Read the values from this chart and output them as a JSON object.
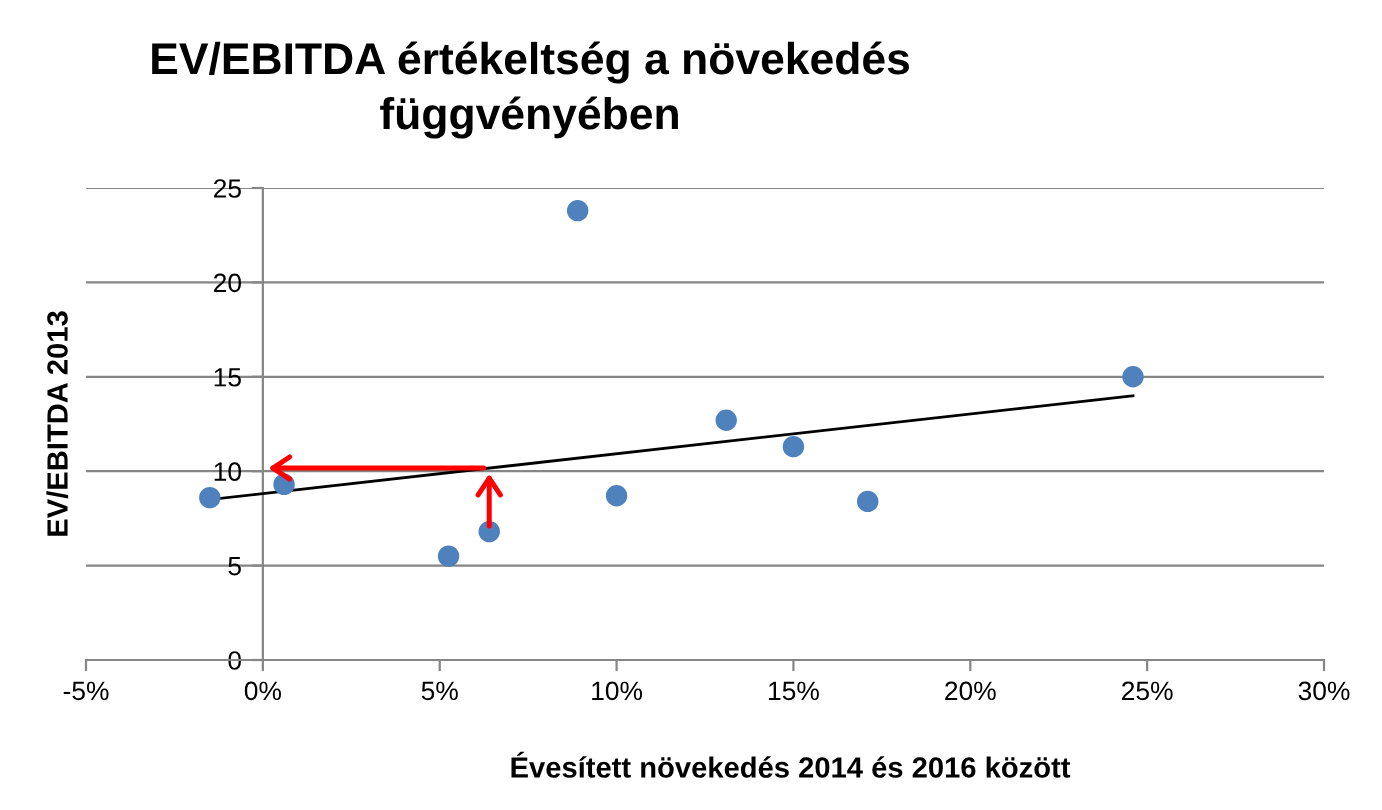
{
  "chart_data": {
    "type": "scatter",
    "title": "EV/EBITDA értékeltség a növekedés\nfüggvényében",
    "xlabel": "Évesített növekedés 2014 és 2016 között",
    "ylabel": "EV/EBITDA 2013",
    "series": [
      {
        "color": "#4f81bd",
        "marker": "circle",
        "x": [
          -1.5,
          0.6,
          5.25,
          6.4,
          8.9,
          10.0,
          13.1,
          15.0,
          17.1,
          24.6
        ],
        "values": [
          8.6,
          9.3,
          5.5,
          6.8,
          23.8,
          8.7,
          12.7,
          11.3,
          8.4,
          15.0
        ]
      },
      {
        "type": "line",
        "color": "#000000",
        "x": [
          -1.5,
          24.6
        ],
        "values": [
          8.5,
          14.0
        ]
      }
    ],
    "xlim": [
      -5,
      30
    ],
    "xticks": [
      {
        "value": -5,
        "label": "-5%"
      },
      {
        "value": 0,
        "label": "0%"
      },
      {
        "value": 5,
        "label": "5%"
      },
      {
        "value": 10,
        "label": "10%"
      },
      {
        "value": 15,
        "label": "15%"
      },
      {
        "value": 20,
        "label": "20%"
      },
      {
        "value": 25,
        "label": "25%"
      },
      {
        "value": 30,
        "label": "30%"
      }
    ],
    "ylim": [
      0,
      25
    ],
    "yticks": [
      0,
      5,
      10,
      15,
      20,
      25
    ],
    "grid": "y"
  }
}
